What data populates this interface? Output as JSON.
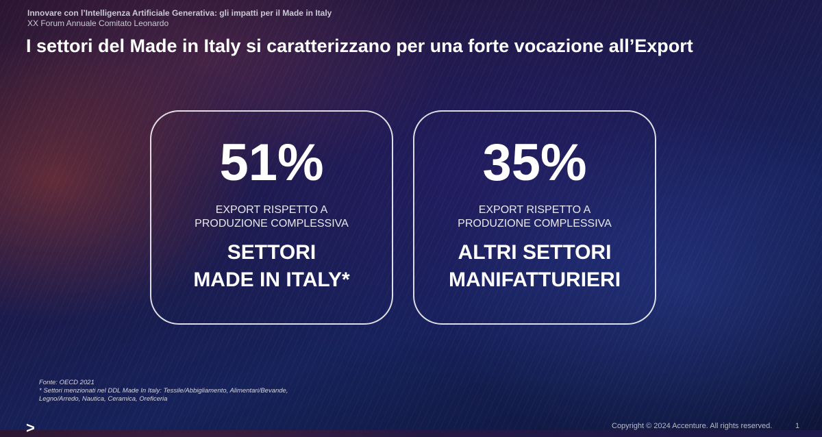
{
  "header": {
    "subtitle_line1": "Innovare con l’Intelligenza Artificiale Generativa: gli impatti per il Made in Italy",
    "subtitle_line2": "XX Forum Annuale Comitato Leonardo"
  },
  "slide": {
    "title": "I settori del Made in Italy si caratterizzano per una forte vocazione all’Export"
  },
  "cards": [
    {
      "value": "51%",
      "description_line1": "EXPORT RISPETTO A",
      "description_line2": "PRODUZIONE COMPLESSIVA",
      "label_line1": "SETTORI",
      "label_line2": "MADE IN ITALY*"
    },
    {
      "value": "35%",
      "description_line1": "EXPORT RISPETTO A",
      "description_line2": "PRODUZIONE COMPLESSIVA",
      "label_line1": "ALTRI SETTORI",
      "label_line2": "MANIFATTURIERI"
    }
  ],
  "footnote": {
    "source": "Fonte: OECD 2021",
    "note": "* Settori menzionati nel DDL Made In Italy: Tessile/Abbigliamento, Alimentari/Bevande, Legno/Arredo, Nautica, Ceramica, Oreficeria"
  },
  "footer": {
    "logo": ">",
    "copyright": "Copyright © 2024 Accenture. All rights reserved.",
    "page_number": "1"
  }
}
